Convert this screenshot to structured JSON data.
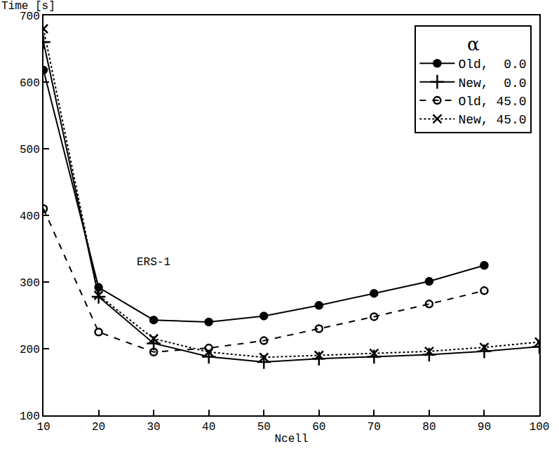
{
  "chart_data": {
    "type": "line",
    "x_label": "Ncell",
    "y_label": "Time [s]",
    "legend_title": "α",
    "legend": "top right",
    "grid": false,
    "xlim": [
      10,
      100
    ],
    "xticks": [
      10,
      20,
      30,
      40,
      50,
      60,
      70,
      80,
      90,
      100
    ],
    "ylim": [
      100,
      700
    ],
    "yticks": [
      100,
      200,
      300,
      400,
      500,
      600,
      700
    ],
    "annotations": [
      {
        "text": "ERS-1",
        "x": 30,
        "y": 330
      }
    ],
    "series": [
      {
        "name": "Old,  0.0",
        "color": "#000000",
        "marker": "circle",
        "line_style": "solid",
        "x": [
          10,
          20,
          30,
          40,
          50,
          60,
          70,
          80,
          90
        ],
        "values": [
          618,
          292,
          243,
          240,
          249,
          265,
          283,
          301,
          325
        ]
      },
      {
        "name": "New,  0.0",
        "color": "#000000",
        "marker": "cross",
        "line_style": "solid",
        "x": [
          10,
          20,
          30,
          40,
          50,
          60,
          70,
          80,
          90,
          100
        ],
        "values": [
          660,
          278,
          208,
          188,
          180,
          185,
          188,
          191,
          196,
          203
        ]
      },
      {
        "name": "Old, 45.0",
        "color": "#000000",
        "marker": "circle-open",
        "line_style": "dash",
        "x": [
          10,
          20,
          30,
          40,
          50,
          60,
          70,
          80,
          90
        ],
        "values": [
          410,
          225,
          195,
          201,
          212,
          230,
          248,
          267,
          287
        ]
      },
      {
        "name": "New, 45.0",
        "color": "#000000",
        "marker": "x",
        "line_style": "dot",
        "x": [
          10,
          20,
          30,
          40,
          50,
          60,
          70,
          80,
          90,
          100
        ],
        "values": [
          680,
          280,
          215,
          195,
          187,
          190,
          193,
          196,
          202,
          210
        ]
      }
    ]
  }
}
